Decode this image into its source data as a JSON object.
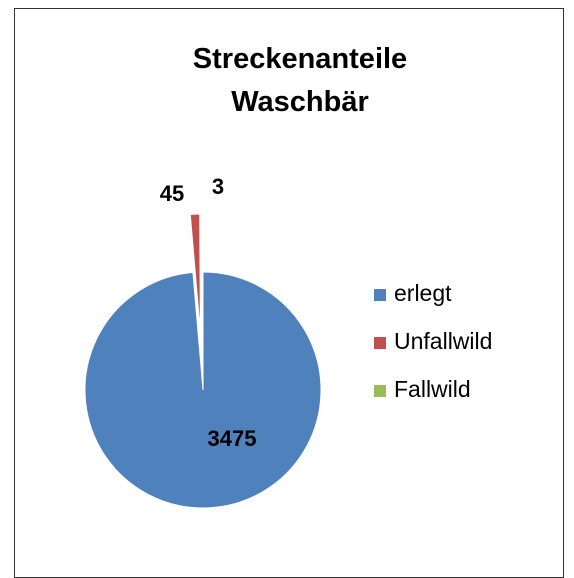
{
  "chart_data": {
    "type": "pie",
    "title": "Streckenanteile Waschbär",
    "categories": [
      "erlegt",
      "Unfallwild",
      "Fallwild"
    ],
    "values": [
      3475,
      45,
      3
    ],
    "colors": [
      "#4f81bd",
      "#c0504d",
      "#9bbb59"
    ],
    "legend": "right"
  }
}
